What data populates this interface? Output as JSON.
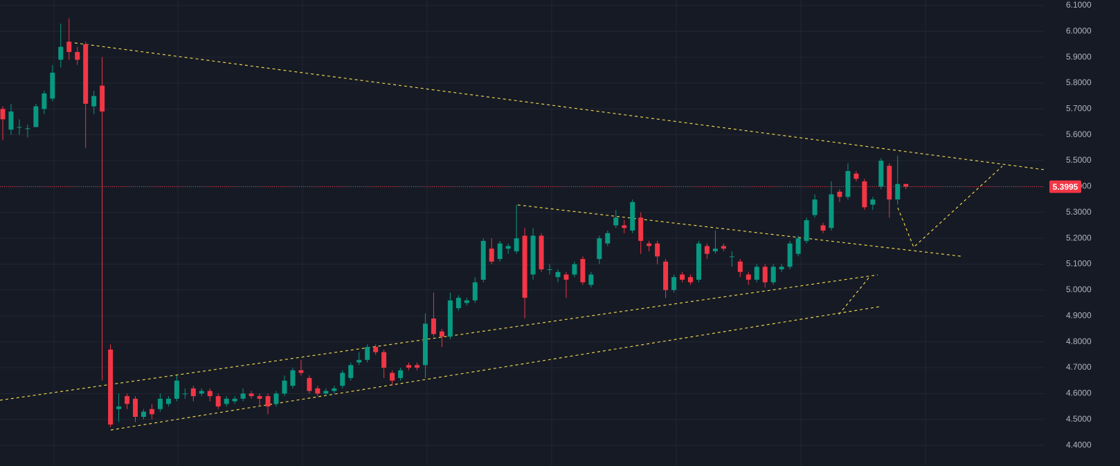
{
  "chart_data": {
    "type": "candlestick",
    "up_color": "#089981",
    "down_color": "#f23645",
    "grid": true,
    "ylim": [
      4.32,
      6.121
    ],
    "yticks": [
      {
        "value": 4.4,
        "label": "4.4000"
      },
      {
        "value": 4.5,
        "label": "4.5000"
      },
      {
        "value": 4.6,
        "label": "4.6000"
      },
      {
        "value": 4.7,
        "label": "4.7000"
      },
      {
        "value": 4.8,
        "label": "4.8000"
      },
      {
        "value": 4.9,
        "label": "4.9000"
      },
      {
        "value": 5.0,
        "label": "5.0000"
      },
      {
        "value": 5.1,
        "label": "5.1000"
      },
      {
        "value": 5.2,
        "label": "5.2000"
      },
      {
        "value": 5.3,
        "label": "5.3000"
      },
      {
        "value": 5.4,
        "label": "5.4000"
      },
      {
        "value": 5.5,
        "label": "5.5000"
      },
      {
        "value": 5.6,
        "label": "5.6000"
      },
      {
        "value": 5.7,
        "label": "5.7000"
      },
      {
        "value": 5.8,
        "label": "5.8000"
      },
      {
        "value": 5.9,
        "label": "5.9000"
      },
      {
        "value": 6.0,
        "label": "6.0000"
      },
      {
        "value": 6.1,
        "label": "6.1000"
      }
    ],
    "last_price": 5.3995,
    "open": [
      5.7,
      5.62,
      5.63,
      5.625,
      5.63,
      5.7,
      5.74,
      5.89,
      5.96,
      5.92,
      5.95,
      5.71,
      5.79,
      4.77,
      4.54,
      4.59,
      4.58,
      4.51,
      4.54,
      4.54,
      4.56,
      4.58,
      4.6,
      4.62,
      4.6,
      4.61,
      4.59,
      4.56,
      4.57,
      4.58,
      4.6,
      4.59,
      4.59,
      4.56,
      4.6,
      4.63,
      4.69,
      4.66,
      4.62,
      4.6,
      4.61,
      4.63,
      4.66,
      4.72,
      4.73,
      4.78,
      4.76,
      4.68,
      4.66,
      4.71,
      4.71,
      4.71,
      4.89,
      4.84,
      4.82,
      4.93,
      4.95,
      4.96,
      5.04,
      5.16,
      5.12,
      5.16,
      5.15,
      5.21,
      5.06,
      5.21,
      5.08,
      5.05,
      5.06,
      5.06,
      5.12,
      5.02,
      5.12,
      5.18,
      5.25,
      5.25,
      5.23,
      5.28,
      5.18,
      5.18,
      5.11,
      5.0,
      5.06,
      5.05,
      5.04,
      5.17,
      5.15,
      5.17,
      5.13,
      5.11,
      5.06,
      5.04,
      5.09,
      5.03,
      5.08,
      5.09,
      5.14,
      5.19,
      5.29,
      5.25,
      5.24,
      5.38,
      5.36,
      5.45,
      5.42,
      5.33,
      5.4,
      5.48,
      5.35,
      5.41
    ],
    "high": [
      5.71,
      5.72,
      5.66,
      5.64,
      5.72,
      5.77,
      5.87,
      6.03,
      6.05,
      5.94,
      5.96,
      5.77,
      5.9,
      4.79,
      4.6,
      4.6,
      4.59,
      4.54,
      4.56,
      4.6,
      4.59,
      4.67,
      4.62,
      4.63,
      4.62,
      4.62,
      4.6,
      4.59,
      4.59,
      4.62,
      4.61,
      4.6,
      4.6,
      4.61,
      4.67,
      4.7,
      4.73,
      4.67,
      4.63,
      4.62,
      4.63,
      4.69,
      4.72,
      4.76,
      4.79,
      4.79,
      4.77,
      4.69,
      4.7,
      4.72,
      4.72,
      4.91,
      4.99,
      4.85,
      4.99,
      4.98,
      4.97,
      5.05,
      5.2,
      5.2,
      5.19,
      5.18,
      5.33,
      5.24,
      5.24,
      5.22,
      5.1,
      5.08,
      5.07,
      5.11,
      5.13,
      5.07,
      5.21,
      5.23,
      5.31,
      5.27,
      5.35,
      5.3,
      5.19,
      5.19,
      5.12,
      5.06,
      5.07,
      5.06,
      5.19,
      5.18,
      5.23,
      5.18,
      5.15,
      5.12,
      5.07,
      5.1,
      5.1,
      5.1,
      5.1,
      5.19,
      5.21,
      5.28,
      5.37,
      5.26,
      5.42,
      5.39,
      5.49,
      5.46,
      5.43,
      5.36,
      5.51,
      5.49,
      5.52,
      5.41
    ],
    "low": [
      5.58,
      5.6,
      5.6,
      5.59,
      5.63,
      5.68,
      5.73,
      5.86,
      5.89,
      5.87,
      5.55,
      5.68,
      4.65,
      4.47,
      4.49,
      4.54,
      4.49,
      4.5,
      4.5,
      4.53,
      4.55,
      4.57,
      4.58,
      4.57,
      4.59,
      4.57,
      4.54,
      4.55,
      4.56,
      4.57,
      4.58,
      4.55,
      4.52,
      4.55,
      4.59,
      4.62,
      4.67,
      4.6,
      4.59,
      4.59,
      4.6,
      4.62,
      4.65,
      4.71,
      4.72,
      4.75,
      4.66,
      4.63,
      4.65,
      4.69,
      4.69,
      4.66,
      4.82,
      4.78,
      4.81,
      4.92,
      4.94,
      4.95,
      5.03,
      5.1,
      5.11,
      5.14,
      5.14,
      4.89,
      5.04,
      5.07,
      5.06,
      5.03,
      4.97,
      5.05,
      5.02,
      5.01,
      5.1,
      5.17,
      5.24,
      5.22,
      5.22,
      5.14,
      5.15,
      5.1,
      4.97,
      4.99,
      5.03,
      5.02,
      5.03,
      5.12,
      5.14,
      5.15,
      5.09,
      5.05,
      5.02,
      5.03,
      5.01,
      5.02,
      5.07,
      5.08,
      5.13,
      5.18,
      5.28,
      5.22,
      5.23,
      5.34,
      5.35,
      5.42,
      5.31,
      5.31,
      5.39,
      5.28,
      5.33,
      5.39
    ],
    "close": [
      5.66,
      5.69,
      5.63,
      5.625,
      5.71,
      5.76,
      5.84,
      5.94,
      5.92,
      5.89,
      5.72,
      5.75,
      5.69,
      4.48,
      4.55,
      4.56,
      4.51,
      4.53,
      4.52,
      4.58,
      4.58,
      4.65,
      4.6,
      4.59,
      4.61,
      4.59,
      4.55,
      4.58,
      4.58,
      4.6,
      4.59,
      4.58,
      4.55,
      4.6,
      4.65,
      4.69,
      4.68,
      4.61,
      4.6,
      4.61,
      4.62,
      4.68,
      4.71,
      4.73,
      4.78,
      4.76,
      4.7,
      4.65,
      4.69,
      4.7,
      4.7,
      4.87,
      4.83,
      4.82,
      4.96,
      4.97,
      4.96,
      5.03,
      5.19,
      5.11,
      5.18,
      5.17,
      5.2,
      4.97,
      5.21,
      5.08,
      5.08,
      5.07,
      5.04,
      5.1,
      5.03,
      5.06,
      5.2,
      5.22,
      5.28,
      5.24,
      5.34,
      5.19,
      5.17,
      5.13,
      5.0,
      5.05,
      5.04,
      5.03,
      5.18,
      5.14,
      5.16,
      5.16,
      5.13,
      5.07,
      5.04,
      5.09,
      5.03,
      5.09,
      5.09,
      5.18,
      5.2,
      5.27,
      5.35,
      5.23,
      5.37,
      5.36,
      5.46,
      5.43,
      5.32,
      5.35,
      5.5,
      5.35,
      5.41,
      5.3995
    ]
  }
}
